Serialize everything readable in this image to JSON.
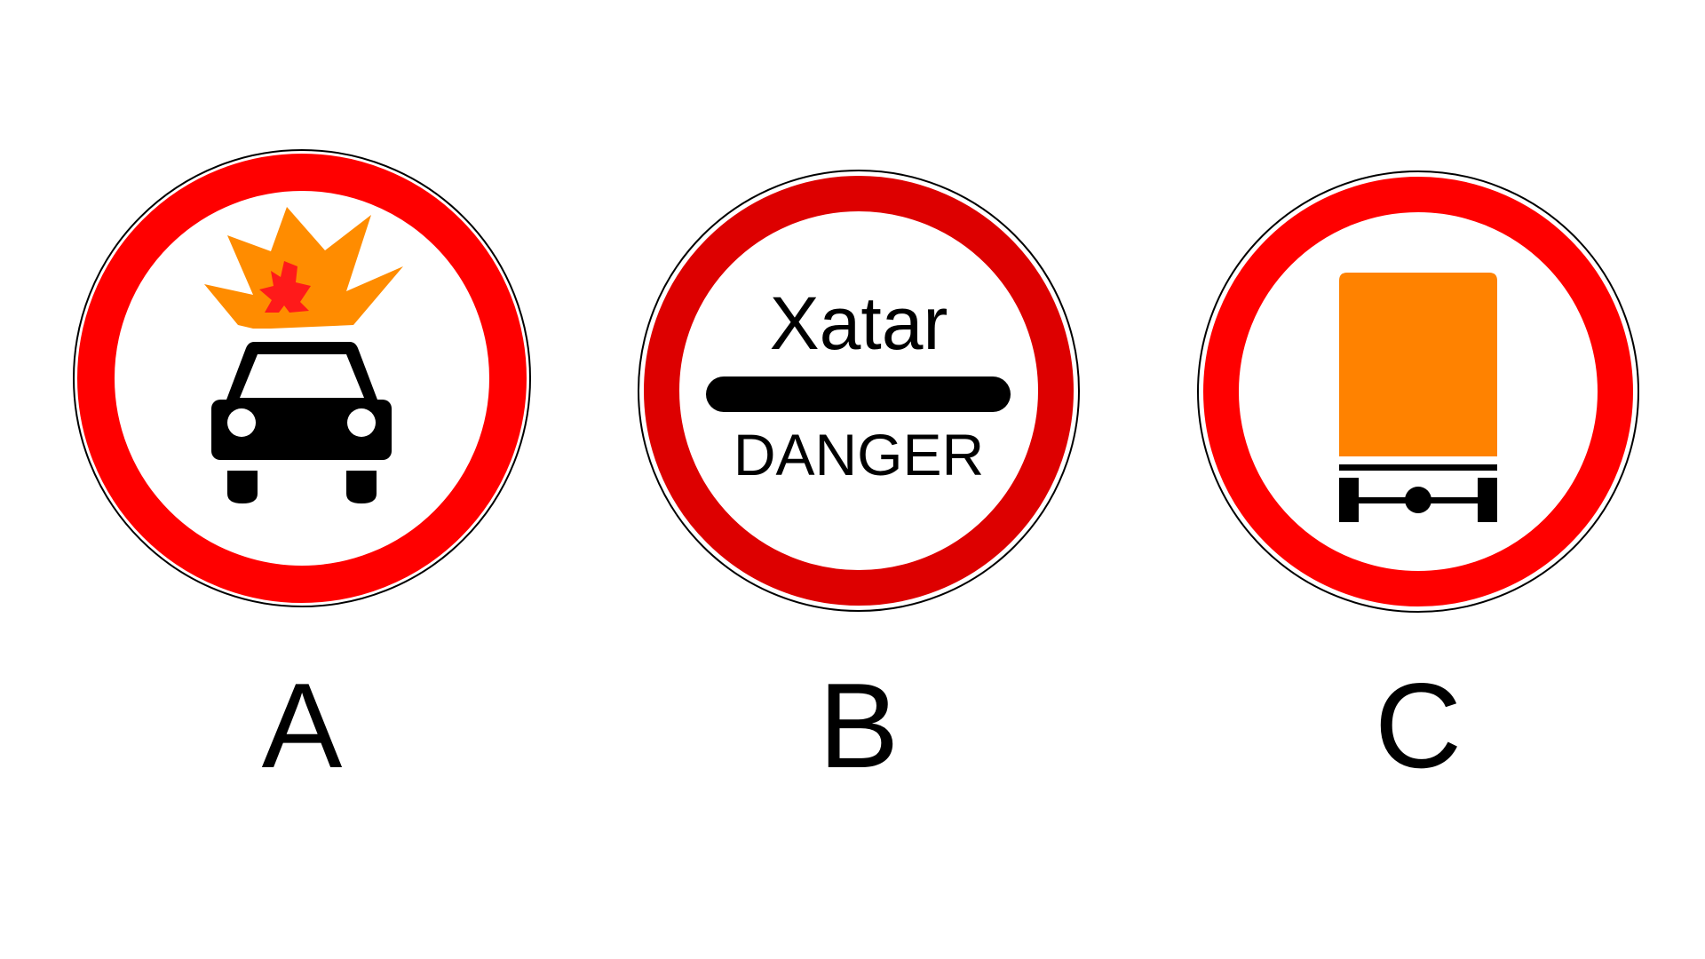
{
  "colors": {
    "background": "#ffffff",
    "ring_red": "#ff0000",
    "ring_dark_red": "#dd0000",
    "ring_outline": "#000000",
    "symbol_black": "#000000",
    "fire_orange": "#ff8c00",
    "fire_red": "#ff1a1a",
    "panel_orange": "#ff8200"
  },
  "signs": [
    {
      "label": "A",
      "symbol": "car-with-explosion-icon"
    },
    {
      "label": "B",
      "symbol": "text-panel",
      "upper_text": "Xatar",
      "lower_text": "DANGER"
    },
    {
      "label": "C",
      "symbol": "orange-plate-trailer-icon"
    }
  ]
}
